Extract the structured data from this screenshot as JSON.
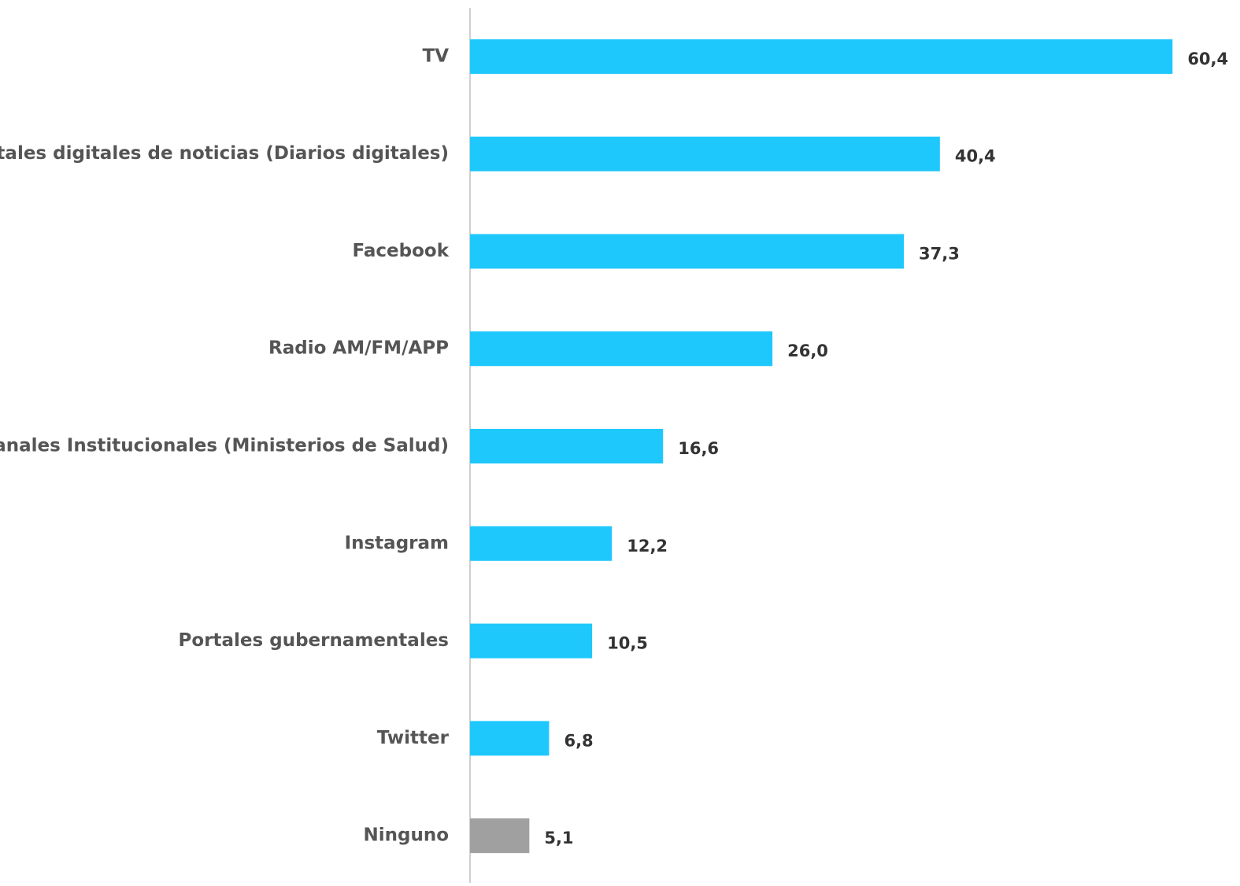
{
  "chart_data": {
    "type": "hbar",
    "categories": [
      "TV",
      "Portales digitales de noticias (Diarios digitales)",
      "Facebook",
      "Radio AM/FM/APP",
      "Canales Institucionales (Ministerios de Salud)",
      "Instagram",
      "Portales gubernamentales",
      "Twitter",
      "Ninguno"
    ],
    "values": [
      60.4,
      40.4,
      37.3,
      26.0,
      16.6,
      12.2,
      10.5,
      6.8,
      5.1
    ],
    "value_labels": [
      "60,4",
      "40,4",
      "37,3",
      "26,0",
      "16,6",
      "12,2",
      "10,5",
      "6,8",
      "5,1"
    ],
    "colors": [
      "#1ec8fd",
      "#1ec8fd",
      "#1ec8fd",
      "#1ec8fd",
      "#1ec8fd",
      "#1ec8fd",
      "#1ec8fd",
      "#1ec8fd",
      "#a0a0a0"
    ],
    "xlim": [
      0,
      66.2
    ]
  }
}
